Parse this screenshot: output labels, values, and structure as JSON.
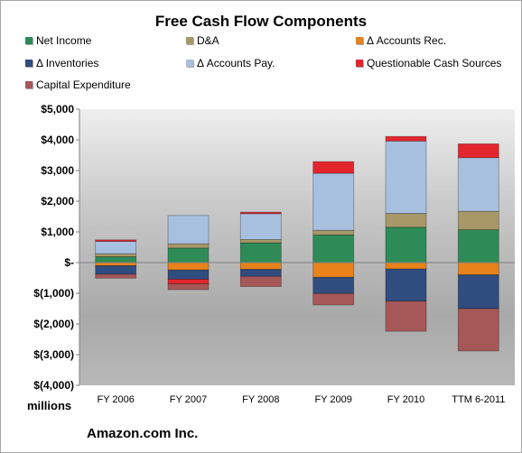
{
  "chart_data": {
    "type": "bar",
    "stacked": true,
    "title": "Free Cash Flow Components",
    "categories": [
      "FY 2006",
      "FY 2007",
      "FY 2008",
      "FY 2009",
      "FY 2010",
      "TTM 6-2011"
    ],
    "series": [
      {
        "name": "Net Income",
        "color": "#2e8b57",
        "values": [
          190,
          476,
          645,
          902,
          1152,
          1070
        ]
      },
      {
        "name": "D&A",
        "color": "#a89868",
        "values": [
          100,
          140,
          110,
          150,
          450,
          600
        ]
      },
      {
        "name": "Δ Accounts Rec.",
        "color": "#e8821a",
        "values": [
          -100,
          -240,
          -220,
          -480,
          -210,
          -400
        ]
      },
      {
        "name": "Δ Inventories",
        "color": "#2f4d7e",
        "values": [
          -280,
          -300,
          -230,
          -530,
          -1050,
          -1100
        ]
      },
      {
        "name": "Δ Accounts Pay.",
        "color": "#a8c0e0",
        "values": [
          400,
          920,
          840,
          1860,
          2360,
          1750
        ]
      },
      {
        "name": "Questionable Cash Sources",
        "color": "#e3262e",
        "values": [
          50,
          -150,
          50,
          380,
          150,
          450
        ]
      },
      {
        "name": "Capital Expenditure",
        "color": "#a65758",
        "values": [
          -130,
          -190,
          -330,
          -370,
          -980,
          -1380
        ]
      }
    ],
    "yaxis": {
      "min": -4000,
      "max": 5000,
      "step": 1000,
      "tick_labels": [
        "$(4,000)",
        "$(3,000)",
        "$(2,000)",
        "$(1,000)",
        "$-",
        "$1,000",
        "$2,000",
        "$3,000",
        "$4,000",
        "$5,000"
      ]
    },
    "units_label": "millions",
    "source_label": "Amazon.com Inc.",
    "grid": false,
    "legend_position": "top"
  }
}
